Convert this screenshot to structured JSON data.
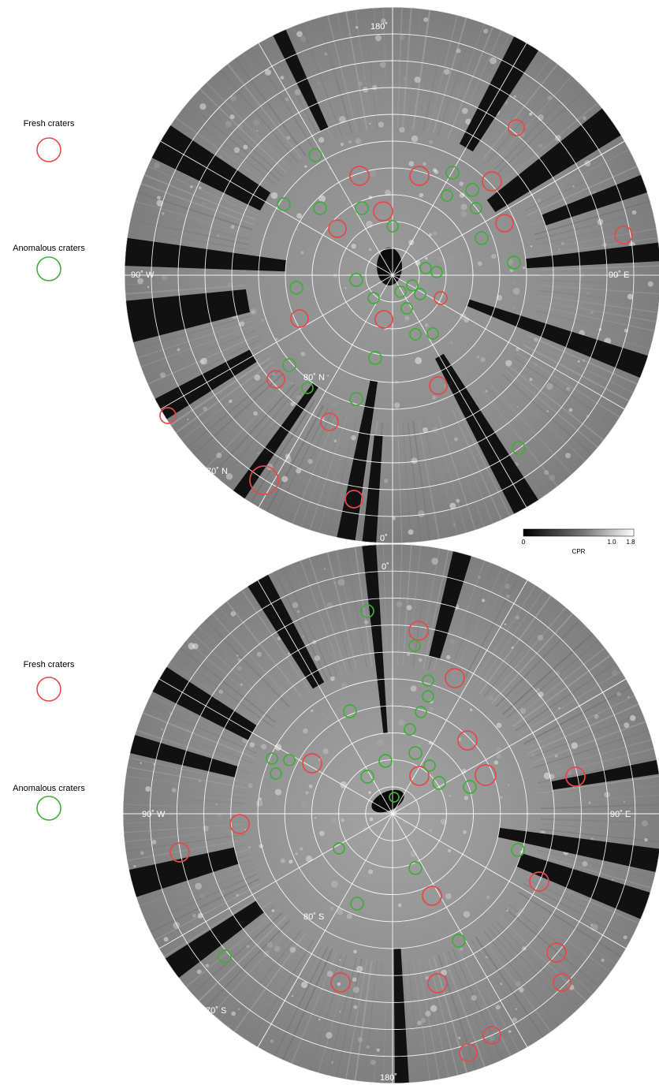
{
  "colors": {
    "fresh": "#e8484a",
    "anomalous": "#3fae3a",
    "grid": "#ffffff",
    "terrain": "#8f8f8f",
    "gap": "#111111"
  },
  "north_map": {
    "legend": {
      "fresh_label": "Fresh craters",
      "anomalous_label": "Anomalous craters"
    },
    "labels": {
      "top": "180˚",
      "left": "90˚ W",
      "right": "90˚ E",
      "bottom": "0˚",
      "lat80": "80˚ N",
      "lat70": "70˚ N"
    }
  },
  "south_map": {
    "legend": {
      "fresh_label": "Fresh craters",
      "anomalous_label": "Anomalous craters"
    },
    "labels": {
      "top": "0˚",
      "left": "90˚ W",
      "right": "90˚ E",
      "bottom": "180˚",
      "lat80": "80˚ S",
      "lat70": "70˚ S"
    }
  },
  "colorbar": {
    "title": "CPR",
    "ticks": [
      "0",
      "1.0",
      "1.8"
    ]
  },
  "north_craters": {
    "fresh": [
      [
        655,
        162,
        10
      ],
      [
        456,
        223,
        12
      ],
      [
        532,
        223,
        12
      ],
      [
        624,
        230,
        12
      ],
      [
        486,
        268,
        12
      ],
      [
        428,
        290,
        11
      ],
      [
        640,
        283,
        11
      ],
      [
        791,
        298,
        11
      ],
      [
        380,
        404,
        11
      ],
      [
        487,
        405,
        11
      ],
      [
        559,
        378,
        8
      ],
      [
        350,
        481,
        11
      ],
      [
        556,
        489,
        11
      ],
      [
        213,
        527,
        10
      ],
      [
        418,
        535,
        11
      ],
      [
        335,
        609,
        18
      ],
      [
        449,
        633,
        11
      ]
    ],
    "anomalous": [
      [
        400,
        197,
        8
      ],
      [
        574,
        219,
        8
      ],
      [
        567,
        248,
        7
      ],
      [
        599,
        241,
        8
      ],
      [
        360,
        259,
        8
      ],
      [
        406,
        264,
        8
      ],
      [
        459,
        264,
        8
      ],
      [
        604,
        264,
        7
      ],
      [
        498,
        287,
        7
      ],
      [
        611,
        302,
        8
      ],
      [
        652,
        333,
        8
      ],
      [
        540,
        340,
        7
      ],
      [
        554,
        345,
        7
      ],
      [
        523,
        362,
        7
      ],
      [
        508,
        370,
        7
      ],
      [
        533,
        373,
        7
      ],
      [
        516,
        391,
        7
      ],
      [
        452,
        355,
        8
      ],
      [
        376,
        365,
        8
      ],
      [
        474,
        378,
        7
      ],
      [
        527,
        424,
        7
      ],
      [
        549,
        423,
        7
      ],
      [
        476,
        454,
        8
      ],
      [
        367,
        463,
        8
      ],
      [
        390,
        492,
        7
      ],
      [
        452,
        506,
        8
      ],
      [
        658,
        568,
        8
      ]
    ]
  },
  "south_craters": {
    "fresh": [
      [
        531,
        800,
        12
      ],
      [
        577,
        860,
        12
      ],
      [
        593,
        939,
        12
      ],
      [
        396,
        968,
        12
      ],
      [
        532,
        984,
        12
      ],
      [
        616,
        983,
        13
      ],
      [
        730,
        985,
        12
      ],
      [
        304,
        1045,
        12
      ],
      [
        228,
        1081,
        12
      ],
      [
        684,
        1118,
        12
      ],
      [
        548,
        1136,
        12
      ],
      [
        706,
        1208,
        12
      ],
      [
        713,
        1246,
        11
      ],
      [
        432,
        1246,
        12
      ],
      [
        555,
        1247,
        12
      ],
      [
        624,
        1313,
        11
      ],
      [
        594,
        1335,
        11
      ]
    ],
    "anomalous": [
      [
        466,
        775,
        8
      ],
      [
        526,
        819,
        7
      ],
      [
        543,
        863,
        7
      ],
      [
        543,
        883,
        7
      ],
      [
        534,
        903,
        7
      ],
      [
        520,
        925,
        7
      ],
      [
        444,
        902,
        8
      ],
      [
        345,
        962,
        7
      ],
      [
        367,
        964,
        7
      ],
      [
        350,
        981,
        7
      ],
      [
        466,
        985,
        8
      ],
      [
        489,
        965,
        8
      ],
      [
        527,
        955,
        8
      ],
      [
        545,
        971,
        7
      ],
      [
        557,
        993,
        8
      ],
      [
        596,
        998,
        8
      ],
      [
        657,
        1078,
        8
      ],
      [
        430,
        1076,
        7
      ],
      [
        527,
        1101,
        8
      ],
      [
        453,
        1146,
        8
      ],
      [
        582,
        1193,
        8
      ],
      [
        285,
        1213,
        8
      ],
      [
        500,
        1011,
        6
      ]
    ]
  }
}
